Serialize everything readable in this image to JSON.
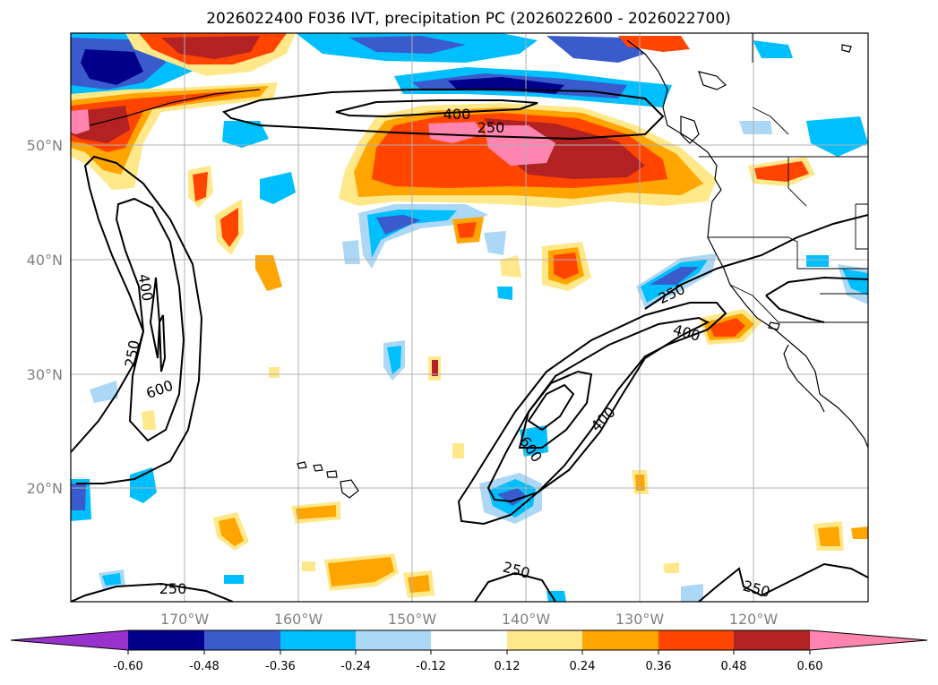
{
  "title": "2026022400 F036 IVT, precipitation PC (2026022600 - 2026022700)",
  "lat_labels": [
    "50°N",
    "40°N",
    "30°N",
    "20°N"
  ],
  "lon_labels": [
    "170°W",
    "160°W",
    "150°W",
    "140°W",
    "130°W",
    "120°W"
  ],
  "colorbar": {
    "colors": [
      "#9932cc",
      "#00008b",
      "#3a5bcc",
      "#00bfff",
      "#add8f5",
      "#ffffff",
      "#ffe88a",
      "#ffa500",
      "#ff4500",
      "#b22222",
      "#ff85b0"
    ],
    "tick_labels": [
      "-0.60",
      "-0.48",
      "-0.36",
      "-0.24",
      "-0.12",
      "0.12",
      "0.24",
      "0.36",
      "0.48",
      "0.60"
    ]
  },
  "ivt_contour_labels": [
    "400",
    "250",
    "400",
    "250",
    "600",
    "250",
    "400",
    "400",
    "600",
    "250",
    "250",
    "250"
  ]
}
